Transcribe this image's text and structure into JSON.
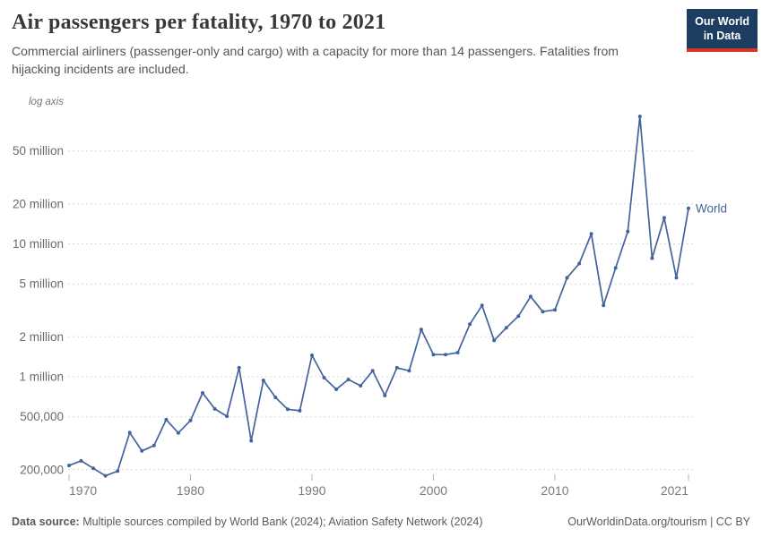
{
  "header": {
    "title": "Air passengers per fatality, 1970 to 2021",
    "subtitle": "Commercial airliners (passenger-only and cargo) with a capacity for more than 14 passengers. Fatalities from hijacking incidents are included.",
    "logo": {
      "line1": "Our World",
      "line2": "in Data"
    }
  },
  "chart_data": {
    "type": "line",
    "title": "Air passengers per fatality, 1970 to 2021",
    "scale_note": "log axis",
    "xlabel": "",
    "ylabel": "Air passengers per fatality",
    "x_ticks": [
      1970,
      1980,
      1990,
      2000,
      2010,
      2021
    ],
    "y_ticks": [
      {
        "value": 50000000,
        "label": "50 million"
      },
      {
        "value": 20000000,
        "label": "20 million"
      },
      {
        "value": 10000000,
        "label": "10 million"
      },
      {
        "value": 5000000,
        "label": "5 million"
      },
      {
        "value": 2000000,
        "label": "2 million"
      },
      {
        "value": 1000000,
        "label": "1 million"
      },
      {
        "value": 500000,
        "label": "500,000"
      },
      {
        "value": 200000,
        "label": "200,000"
      }
    ],
    "ylim": [
      170000,
      110000000
    ],
    "y_scale": "log",
    "grid": true,
    "legend_position": "end-of-line",
    "series": [
      {
        "name": "World",
        "x": [
          1970,
          1971,
          1972,
          1973,
          1974,
          1975,
          1976,
          1977,
          1978,
          1979,
          1980,
          1981,
          1982,
          1983,
          1984,
          1985,
          1986,
          1987,
          1988,
          1989,
          1990,
          1991,
          1992,
          1993,
          1994,
          1995,
          1996,
          1997,
          1998,
          1999,
          2000,
          2001,
          2002,
          2003,
          2004,
          2005,
          2006,
          2007,
          2008,
          2009,
          2010,
          2011,
          2012,
          2013,
          2014,
          2015,
          2016,
          2017,
          2018,
          2019,
          2020,
          2021
        ],
        "values": [
          215000,
          233000,
          205000,
          180000,
          195000,
          380000,
          277000,
          304000,
          476000,
          378000,
          469000,
          757000,
          573000,
          505000,
          1170000,
          330000,
          940000,
          700000,
          570000,
          556000,
          1450000,
          985000,
          805000,
          955000,
          857000,
          1110000,
          723000,
          1170000,
          1110000,
          2270000,
          1470000,
          1470000,
          1520000,
          2490000,
          3440000,
          1880000,
          2340000,
          2860000,
          4020000,
          3090000,
          3190000,
          5560000,
          7110000,
          11900000,
          3440000,
          6590000,
          12400000,
          91000000,
          7800000,
          15700000,
          5560000,
          18500000
        ]
      }
    ],
    "colors": {
      "line": "#44639c",
      "series_label": "#44639c",
      "grid": "#d8d8d8",
      "y_tick_label": "#6b6b6b",
      "x_tick_label": "#7a7a7a",
      "tick_mark": "#b0b0b0",
      "scale_note": "#757575"
    }
  },
  "footer": {
    "source_label": "Data source:",
    "source_text": " Multiple sources compiled by World Bank (2024); Aviation Safety Network (2024)",
    "site_text": "OurWorldinData.org/tourism | CC BY"
  }
}
